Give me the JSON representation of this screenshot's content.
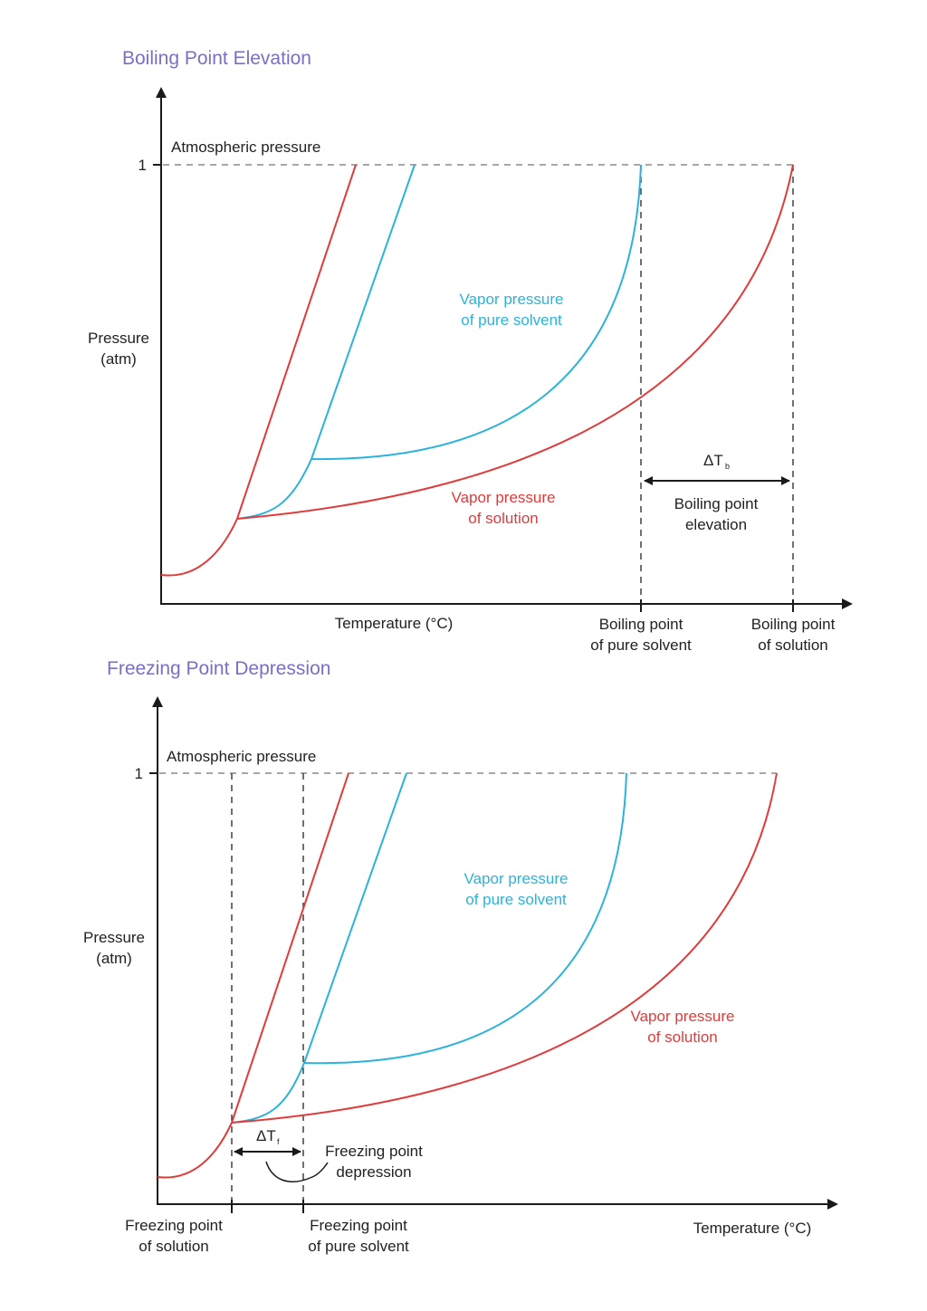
{
  "colors": {
    "title": "#7b6fc4",
    "solution": "#e03b3b",
    "pure_solvent": "#2bb3d9",
    "axis": "#1a1a1a",
    "guide": "#8a8a8a"
  },
  "boiling": {
    "title": "Boiling Point Elevation",
    "y_label_line1": "Pressure",
    "y_label_line2": "(atm)",
    "y_tick": "1",
    "atm_label": "Atmospheric pressure",
    "x_label": "Temperature (°C)",
    "pure_label_line1": "Vapor pressure",
    "pure_label_line2": "of pure solvent",
    "solution_label_line1": "Vapor pressure",
    "solution_label_line2": "of solution",
    "delta_symbol": "ΔT",
    "delta_sub": "b",
    "delta_label_line1": "Boiling point",
    "delta_label_line2": "elevation",
    "bp_pure_line1": "Boiling point",
    "bp_pure_line2": "of pure solvent",
    "bp_solution_line1": "Boiling point",
    "bp_solution_line2": "of solution"
  },
  "freezing": {
    "title": "Freezing Point Depression",
    "y_label_line1": "Pressure",
    "y_label_line2": "(atm)",
    "y_tick": "1",
    "atm_label": "Atmospheric pressure",
    "x_label": "Temperature (°C)",
    "pure_label_line1": "Vapor pressure",
    "pure_label_line2": "of pure solvent",
    "solution_label_line1": "Vapor pressure",
    "solution_label_line2": "of solution",
    "delta_symbol": "ΔT",
    "delta_sub": "f",
    "delta_label_line1": "Freezing point",
    "delta_label_line2": "depression",
    "fp_solution_line1": "Freezing point",
    "fp_solution_line2": "of solution",
    "fp_pure_line1": "Freezing point",
    "fp_pure_line2": "of pure solvent"
  }
}
